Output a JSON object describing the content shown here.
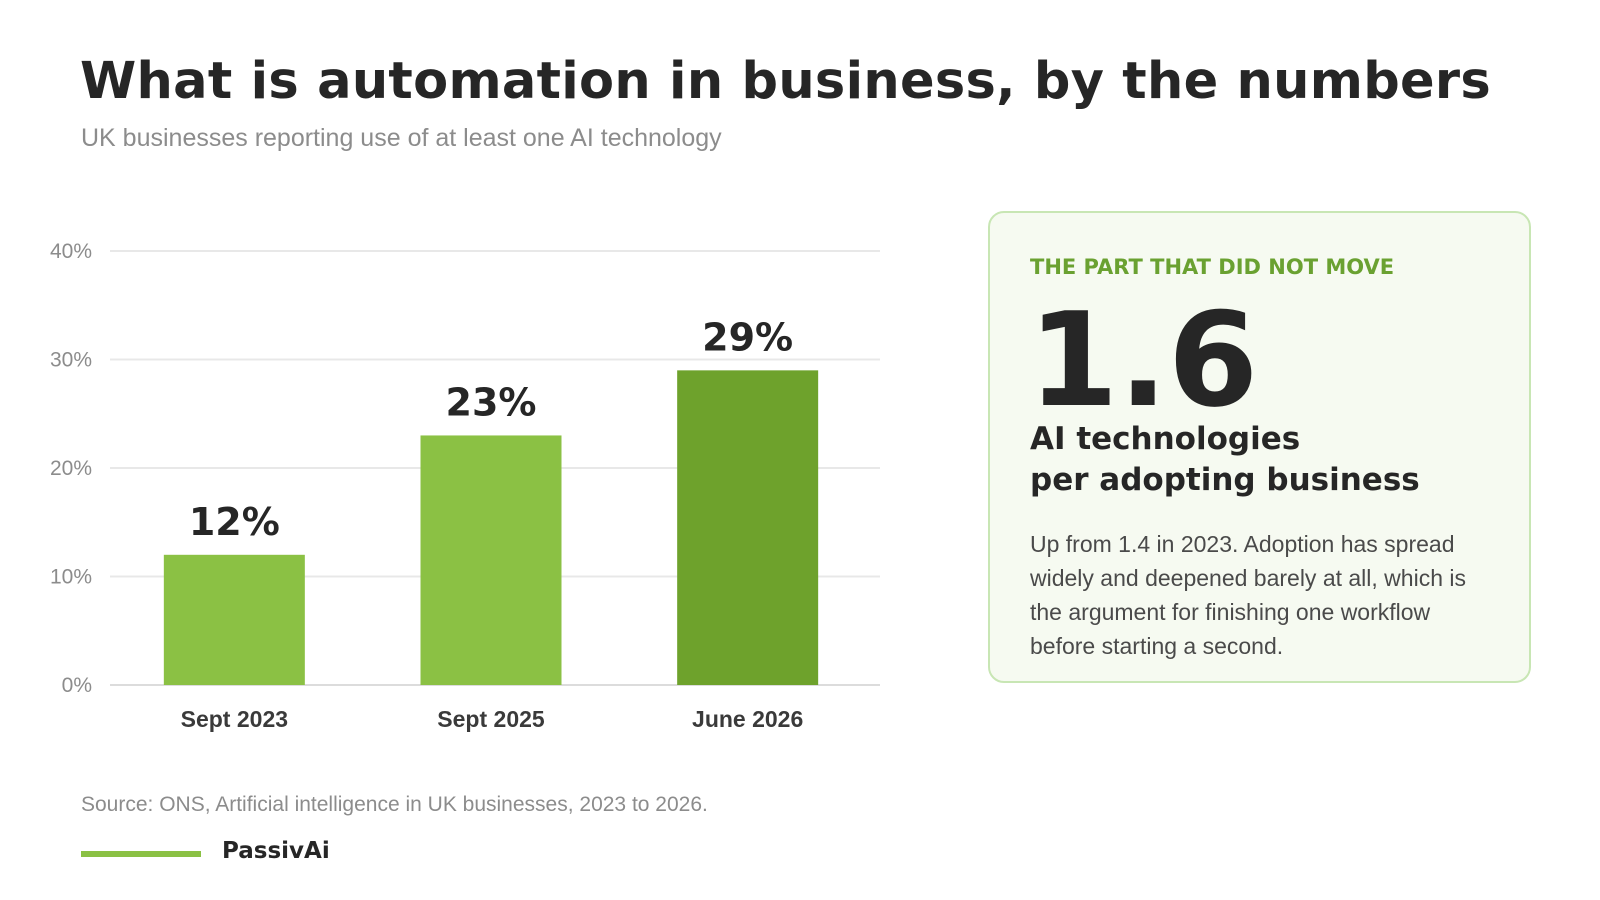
{
  "title": "What is automation in business, by the numbers",
  "subtitle": "UK businesses reporting use of at least one AI technology",
  "chart_data": {
    "type": "bar",
    "categories": [
      "Sept 2023",
      "Sept 2025",
      "June 2026"
    ],
    "values": [
      12,
      23,
      29
    ],
    "value_labels": [
      "12%",
      "23%",
      "29%"
    ],
    "bar_colors": [
      "#8bc144",
      "#8bc144",
      "#6ea22c"
    ],
    "ylim": [
      0,
      40
    ],
    "yticks": [
      0,
      10,
      20,
      30,
      40
    ],
    "ytick_labels": [
      "0%",
      "10%",
      "20%",
      "30%",
      "40%"
    ],
    "grid": true,
    "xlabel": "",
    "ylabel": ""
  },
  "card": {
    "kicker": "THE PART THAT DID NOT MOVE",
    "big_number": "1.6",
    "unit": "AI technologies\nper adopting business",
    "body": "Up from 1.4 in 2023. Adoption has spread widely and deepened barely at all, which is the argument for finishing one workflow before starting a second."
  },
  "source": "Source: ONS, Artificial intelligence in UK businesses, 2023 to 2026.",
  "brand": {
    "name": "PassivAi",
    "color": "#8bc144"
  }
}
